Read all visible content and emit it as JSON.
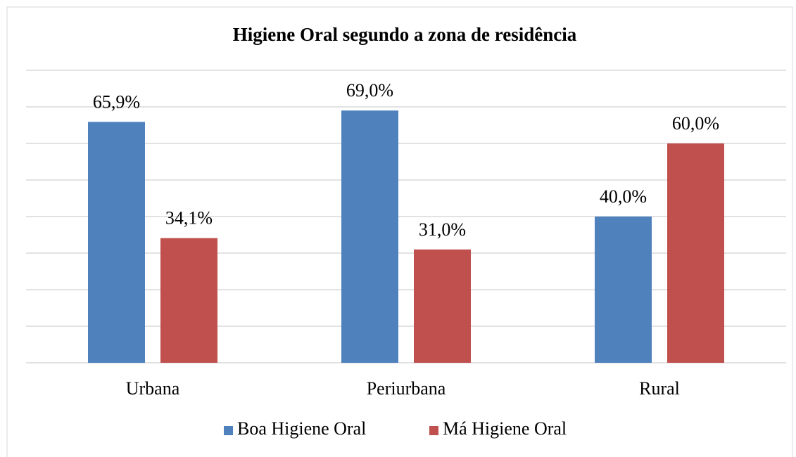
{
  "chart_data": {
    "type": "bar",
    "title": "Higiene Oral segundo a zona de residência",
    "categories": [
      "Urbana",
      "Periurbana",
      "Rural"
    ],
    "series": [
      {
        "name": "Boa Higiene Oral",
        "color": "#4f81bd",
        "values": [
          65.9,
          69.0,
          40.0
        ],
        "value_labels": [
          "65,9%",
          "69,0%",
          "40,0%"
        ]
      },
      {
        "name": "Má Higiene Oral",
        "color": "#c0504d",
        "values": [
          34.1,
          31.0,
          60.0
        ],
        "value_labels": [
          "34,1%",
          "31,0%",
          "60,0%"
        ]
      }
    ],
    "ylim": [
      0,
      80
    ],
    "yticks": [
      0,
      10,
      20,
      30,
      40,
      50,
      60,
      70,
      80
    ],
    "grid": true,
    "legend": "bottom"
  }
}
